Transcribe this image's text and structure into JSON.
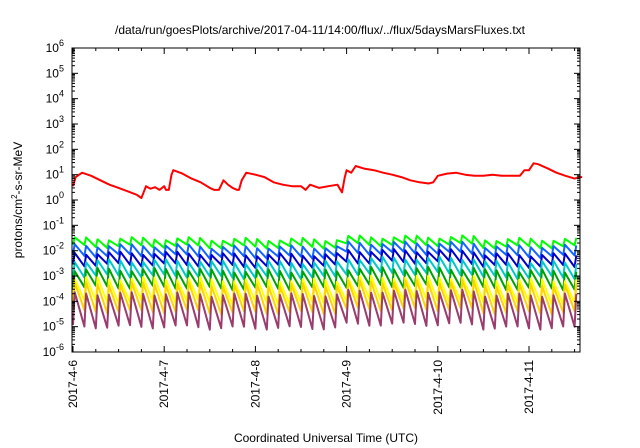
{
  "chart_data": {
    "type": "line",
    "title": "/data/run/goesPlots/archive/2017-04-11/14:00/flux/../flux/5daysMarsFluxes.txt",
    "xlabel": "Coordinated Universal Time (UTC)",
    "ylabel": {
      "prefix": "protons/cm",
      "sup": "2",
      "suffix": "-s-sr-MeV"
    },
    "y_scale": "log",
    "ylim_exponents": [
      -6,
      6
    ],
    "y_ticks": [
      {
        "base": "10",
        "exp": "-6"
      },
      {
        "base": "10",
        "exp": "-5"
      },
      {
        "base": "10",
        "exp": "-4"
      },
      {
        "base": "10",
        "exp": "-3"
      },
      {
        "base": "10",
        "exp": "-2"
      },
      {
        "base": "10",
        "exp": "-1"
      },
      {
        "base": "10",
        "exp": "0"
      },
      {
        "base": "10",
        "exp": "1"
      },
      {
        "base": "10",
        "exp": "2"
      },
      {
        "base": "10",
        "exp": "3"
      },
      {
        "base": "10",
        "exp": "4"
      },
      {
        "base": "10",
        "exp": "5"
      },
      {
        "base": "10",
        "exp": "6"
      }
    ],
    "x_range_days": [
      "2017-04-06",
      "2017-04-11 14:00"
    ],
    "x_ticks": [
      "2017-4-6",
      "2017-4-7",
      "2017-4-8",
      "2017-4-9",
      "2017-4-10",
      "2017-4-11"
    ],
    "grid": false,
    "legend": "none",
    "series": [
      {
        "color": "#ff0000",
        "sawtooth": false,
        "points": [
          [
            0.0,
            3.5
          ],
          [
            0.03,
            8
          ],
          [
            0.1,
            12
          ],
          [
            0.2,
            9
          ],
          [
            0.3,
            6
          ],
          [
            0.4,
            4
          ],
          [
            0.5,
            3
          ],
          [
            0.6,
            2.2
          ],
          [
            0.7,
            1.6
          ],
          [
            0.75,
            1.2
          ],
          [
            0.8,
            3.5
          ],
          [
            0.85,
            2.8
          ],
          [
            0.9,
            3.2
          ],
          [
            0.95,
            2.5
          ],
          [
            1.0,
            3.5
          ],
          [
            1.02,
            2.5
          ],
          [
            1.05,
            2.5
          ],
          [
            1.08,
            10
          ],
          [
            1.1,
            15
          ],
          [
            1.2,
            11
          ],
          [
            1.3,
            7
          ],
          [
            1.4,
            5
          ],
          [
            1.5,
            3
          ],
          [
            1.55,
            2.5
          ],
          [
            1.6,
            2.5
          ],
          [
            1.65,
            6
          ],
          [
            1.7,
            4
          ],
          [
            1.75,
            3
          ],
          [
            1.8,
            2.5
          ],
          [
            1.82,
            2.5
          ],
          [
            1.85,
            6
          ],
          [
            1.9,
            12
          ],
          [
            2.0,
            10
          ],
          [
            2.1,
            8
          ],
          [
            2.2,
            5
          ],
          [
            2.3,
            4
          ],
          [
            2.4,
            3.5
          ],
          [
            2.5,
            3.5
          ],
          [
            2.55,
            2.5
          ],
          [
            2.6,
            4
          ],
          [
            2.7,
            3
          ],
          [
            2.8,
            3.5
          ],
          [
            2.9,
            4
          ],
          [
            2.95,
            2
          ],
          [
            2.98,
            8
          ],
          [
            3.0,
            15
          ],
          [
            3.05,
            12
          ],
          [
            3.1,
            22
          ],
          [
            3.2,
            17
          ],
          [
            3.3,
            15
          ],
          [
            3.4,
            12
          ],
          [
            3.5,
            10
          ],
          [
            3.6,
            8
          ],
          [
            3.7,
            6
          ],
          [
            3.8,
            5
          ],
          [
            3.9,
            4.5
          ],
          [
            3.95,
            5
          ],
          [
            4.0,
            9
          ],
          [
            4.1,
            11
          ],
          [
            4.2,
            12
          ],
          [
            4.3,
            10
          ],
          [
            4.4,
            9
          ],
          [
            4.5,
            9
          ],
          [
            4.6,
            10
          ],
          [
            4.7,
            9
          ],
          [
            4.8,
            9
          ],
          [
            4.9,
            9
          ],
          [
            4.95,
            15
          ],
          [
            5.0,
            15
          ],
          [
            5.05,
            28
          ],
          [
            5.1,
            26
          ],
          [
            5.2,
            18
          ],
          [
            5.3,
            12
          ],
          [
            5.4,
            9
          ],
          [
            5.5,
            7
          ],
          [
            5.55,
            8
          ],
          [
            5.583,
            8
          ]
        ]
      },
      {
        "color": "#00ff00",
        "sawtooth": true,
        "peaks": [
          0.03,
          0.028,
          0.035,
          0.028
        ],
        "trough_factor": 0.5
      },
      {
        "color": "#1464ff",
        "sawtooth": true,
        "peaks": [
          0.016,
          0.014,
          0.02,
          0.015
        ],
        "trough_factor": 0.4
      },
      {
        "color": "#0000c8",
        "sawtooth": true,
        "peaks": [
          0.008,
          0.007,
          0.01,
          0.007
        ],
        "trough_factor": 0.35
      },
      {
        "color": "#00c8c8",
        "sawtooth": true,
        "peaks": [
          0.004,
          0.0035,
          0.005,
          0.0035
        ],
        "trough_factor": 0.25
      },
      {
        "color": "#00a000",
        "sawtooth": true,
        "peaks": [
          0.0018,
          0.0016,
          0.002,
          0.0016
        ],
        "trough_factor": 0.2
      },
      {
        "color": "#ffff00",
        "sawtooth": true,
        "peaks": [
          0.0008,
          0.0007,
          0.0009,
          0.0007
        ],
        "trough_factor": 0.12
      },
      {
        "color": "#ffd200",
        "sawtooth": true,
        "peaks": [
          0.0005,
          0.00045,
          0.0006,
          0.00045
        ],
        "trough_factor": 0.08
      },
      {
        "color": "#9b3c6e",
        "sawtooth": true,
        "peaks": [
          0.0002,
          0.00018,
          0.00025,
          0.00018
        ],
        "trough_factor": 0.05
      }
    ]
  }
}
